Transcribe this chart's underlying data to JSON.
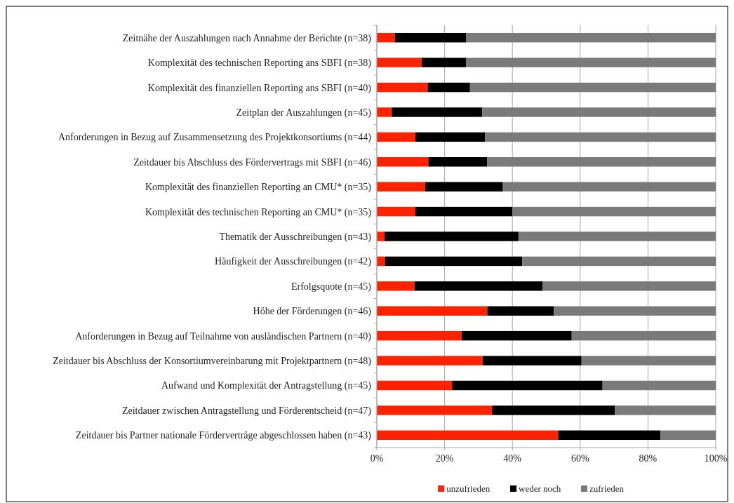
{
  "chart_data": {
    "type": "bar",
    "orientation": "horizontal",
    "stacked": true,
    "categories": [
      "Zeitnähe der Auszahlungen nach Annahme der Berichte (n=38)",
      "Komplexität des technischen Reporting ans SBFI (n=38)",
      "Komplexität des finanziellen Reporting ans SBFI (n=40)",
      "Zeitplan der Auszahlungen (n=45)",
      "Anforderungen in Bezug auf Zusammensetzung des Projektkonsortiums (n=44)",
      "Zeitdauer bis Abschluss des Fördervertrags mit SBFI (n=46)",
      "Komplexität des finanziellen Reporting an CMU* (n=35)",
      "Komplexität des technischen Reporting an CMU* (n=35)",
      "Thematik der Ausschreibungen (n=43)",
      "Häufigkeit der Ausschreibungen (n=42)",
      "Erfolgsquote (n=45)",
      "Höhe der Förderungen (n=46)",
      "Anforderungen in Bezug auf Teilnahme von ausländischen Partnern (n=40)",
      "Zeitdauer bis Abschluss der Konsortiumvereinbarung mit Projektpartnern (n=48)",
      "Aufwand und Komplexität der Antragstellung (n=45)",
      "Zeitdauer zwischen Antragstellung und Förderentscheid (n=47)",
      "Zeitdauer bis Partner nationale Förderverträge abgeschlossen haben (n=43)"
    ],
    "series": [
      {
        "name": "unzufrieden",
        "color": "#ff2200",
        "values": [
          5.3,
          13.2,
          15,
          4.4,
          11.4,
          15.2,
          14.3,
          11.4,
          2.3,
          2.4,
          11.1,
          32.6,
          25,
          31.2,
          22.2,
          34,
          53.5
        ]
      },
      {
        "name": "weder noch",
        "color": "#000000",
        "values": [
          21.1,
          13.2,
          12.5,
          26.7,
          20.5,
          17.4,
          22.9,
          28.6,
          39.5,
          40.5,
          37.8,
          19.6,
          32.5,
          29.2,
          44.4,
          36.2,
          30.2
        ]
      },
      {
        "name": "zufrieden",
        "color": "#7a7a7a",
        "values": [
          73.6,
          73.6,
          72.5,
          68.9,
          68.1,
          67.4,
          62.8,
          60,
          58.2,
          57.1,
          51.1,
          47.8,
          42.5,
          39.6,
          33.4,
          29.8,
          16.3
        ]
      }
    ],
    "xlim": [
      0,
      100
    ],
    "xticks": [
      {
        "value": 0,
        "label": "0%"
      },
      {
        "value": 20,
        "label": "20%"
      },
      {
        "value": 40,
        "label": "40%"
      },
      {
        "value": 60,
        "label": "60%"
      },
      {
        "value": 80,
        "label": "80%"
      },
      {
        "value": 100,
        "label": "100%"
      }
    ],
    "grid": "x",
    "legend": "bottom"
  }
}
